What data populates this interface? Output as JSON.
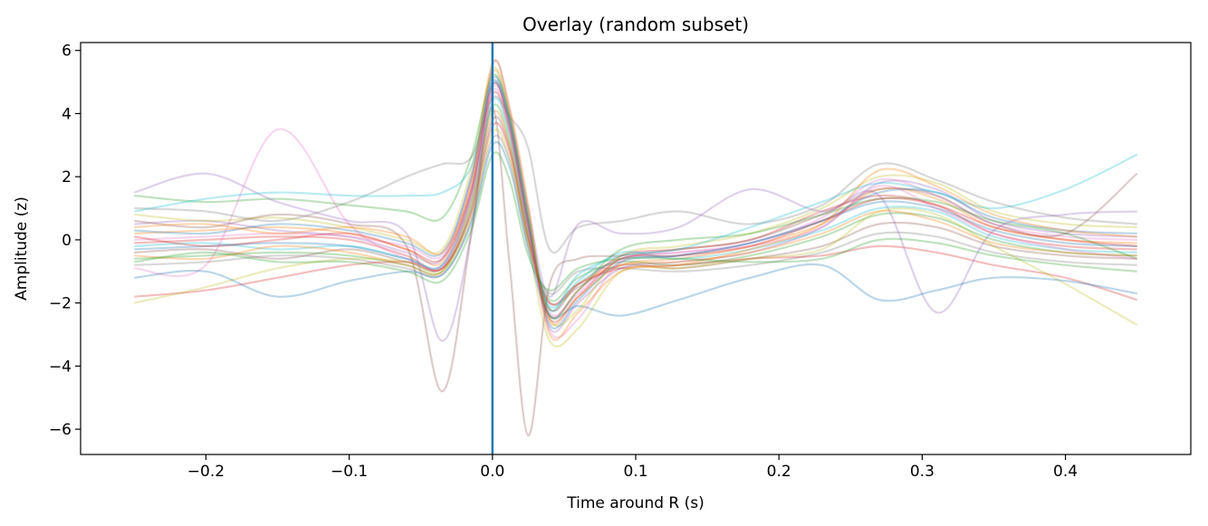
{
  "chart_data": {
    "type": "line",
    "title": "Overlay (random subset)",
    "xlabel": "Time around R (s)",
    "ylabel": "Amplitude (z)",
    "xlim": [
      -0.2875,
      0.4875
    ],
    "ylim": [
      -6.8,
      6.25
    ],
    "xticks": [
      -0.2,
      -0.1,
      0.0,
      0.1,
      0.2,
      0.3,
      0.4
    ],
    "xtick_labels": [
      "−0.2",
      "−0.1",
      "0.0",
      "0.1",
      "0.2",
      "0.3",
      "0.4"
    ],
    "yticks": [
      -6,
      -4,
      -2,
      0,
      2,
      4,
      6
    ],
    "ytick_labels": [
      "−6",
      "−4",
      "−2",
      "0",
      "2",
      "4",
      "6"
    ],
    "grid": false,
    "legend": "none",
    "x_range": [
      -0.25,
      0.45
    ],
    "vline": {
      "x": 0.0,
      "color": "#1f77b4"
    },
    "series_alpha": 0.3,
    "palette": [
      "#1f77b4",
      "#ff7f0e",
      "#2ca02c",
      "#d62728",
      "#9467bd",
      "#8c564b",
      "#e377c2",
      "#7f7f7f",
      "#bcbd22",
      "#17becf"
    ],
    "series": [
      {
        "x": [
          -0.25,
          -0.2,
          -0.15,
          -0.1,
          -0.06,
          -0.035,
          -0.015,
          0.0,
          0.012,
          0.025,
          0.04,
          0.06,
          0.09,
          0.13,
          0.18,
          0.23,
          0.27,
          0.31,
          0.35,
          0.4,
          0.45
        ],
        "y": [
          -0.3,
          -0.2,
          -0.1,
          -0.2,
          -0.6,
          -0.8,
          1.5,
          4.9,
          3.6,
          0.4,
          -2.2,
          -1.4,
          -0.6,
          -0.5,
          -0.1,
          0.6,
          1.2,
          1.0,
          0.3,
          -0.1,
          -0.2
        ]
      },
      {
        "x": [
          -0.25,
          -0.2,
          -0.15,
          -0.1,
          -0.06,
          -0.035,
          -0.015,
          0.0,
          0.012,
          0.025,
          0.04,
          0.06,
          0.09,
          0.13,
          0.18,
          0.23,
          0.27,
          0.31,
          0.35,
          0.4,
          0.45
        ],
        "y": [
          0.2,
          0.3,
          0.4,
          0.2,
          -0.3,
          -0.7,
          1.8,
          5.3,
          3.9,
          0.6,
          -2.6,
          -1.8,
          -0.8,
          -0.6,
          -0.2,
          0.5,
          1.6,
          1.3,
          0.4,
          0.0,
          -0.1
        ]
      },
      {
        "x": [
          -0.25,
          -0.2,
          -0.15,
          -0.1,
          -0.06,
          -0.035,
          -0.015,
          0.0,
          0.012,
          0.025,
          0.04,
          0.06,
          0.09,
          0.13,
          0.18,
          0.23,
          0.27,
          0.31,
          0.35,
          0.4,
          0.45
        ],
        "y": [
          -0.6,
          -0.5,
          -0.4,
          -0.5,
          -0.8,
          -1.0,
          1.0,
          4.2,
          3.1,
          0.1,
          -1.9,
          -1.2,
          -0.7,
          -0.8,
          -0.5,
          0.1,
          0.8,
          0.7,
          0.0,
          -0.4,
          -0.5
        ]
      },
      {
        "x": [
          -0.25,
          -0.2,
          -0.15,
          -0.1,
          -0.06,
          -0.035,
          -0.015,
          0.0,
          0.012,
          0.025,
          0.04,
          0.06,
          0.09,
          0.13,
          0.18,
          0.23,
          0.27,
          0.31,
          0.35,
          0.4,
          0.45
        ],
        "y": [
          -0.1,
          0.0,
          0.1,
          0.0,
          -0.5,
          -0.9,
          1.3,
          4.6,
          3.4,
          0.3,
          -2.4,
          -1.6,
          -0.5,
          -0.3,
          0.0,
          0.9,
          1.4,
          1.1,
          0.2,
          -0.2,
          -0.3
        ]
      },
      {
        "x": [
          -0.25,
          -0.2,
          -0.15,
          -0.1,
          -0.06,
          -0.035,
          -0.015,
          0.0,
          0.012,
          0.025,
          0.04,
          0.06,
          0.09,
          0.13,
          0.18,
          0.23,
          0.27,
          0.31,
          0.35,
          0.4,
          0.45
        ],
        "y": [
          0.5,
          0.6,
          0.3,
          0.1,
          -0.4,
          -0.6,
          2.0,
          5.0,
          3.8,
          0.7,
          -2.8,
          -2.0,
          -0.9,
          -0.7,
          -0.4,
          0.4,
          1.8,
          1.6,
          0.6,
          0.2,
          0.1
        ]
      },
      {
        "x": [
          -0.25,
          -0.2,
          -0.15,
          -0.1,
          -0.06,
          -0.035,
          -0.015,
          0.0,
          0.012,
          0.025,
          0.04,
          0.06,
          0.09,
          0.13,
          0.18,
          0.23,
          0.27,
          0.31,
          0.35,
          0.4,
          0.45
        ],
        "y": [
          -0.4,
          -0.3,
          -0.6,
          -0.3,
          -0.7,
          -0.9,
          0.9,
          3.8,
          2.9,
          0.0,
          -2.0,
          -1.5,
          -0.8,
          -0.9,
          -0.6,
          -0.2,
          0.5,
          0.4,
          -0.2,
          -0.5,
          -0.6
        ]
      },
      {
        "x": [
          -0.25,
          -0.2,
          -0.15,
          -0.1,
          -0.06,
          -0.035,
          -0.015,
          0.0,
          0.012,
          0.025,
          0.04,
          0.06,
          0.09,
          0.13,
          0.18,
          0.23,
          0.27,
          0.31,
          0.35,
          0.4,
          0.45
        ],
        "y": [
          0.0,
          0.1,
          0.2,
          0.1,
          -0.2,
          -0.5,
          1.6,
          4.8,
          3.7,
          0.5,
          -2.3,
          -1.7,
          -0.6,
          -0.4,
          -0.1,
          0.7,
          1.9,
          1.4,
          0.5,
          0.1,
          0.0
        ]
      },
      {
        "x": [
          -0.25,
          -0.2,
          -0.15,
          -0.1,
          -0.06,
          -0.035,
          -0.015,
          0.0,
          0.012,
          0.025,
          0.04,
          0.06,
          0.09,
          0.13,
          0.18,
          0.23,
          0.27,
          0.31,
          0.35,
          0.4,
          0.45
        ],
        "y": [
          -0.8,
          -0.7,
          -0.5,
          -0.6,
          -0.9,
          -1.1,
          0.6,
          3.2,
          2.5,
          -0.2,
          -1.7,
          -1.0,
          -0.9,
          -1.0,
          -0.8,
          -0.4,
          0.2,
          0.1,
          -0.4,
          -0.7,
          -0.8
        ]
      },
      {
        "x": [
          -0.25,
          -0.2,
          -0.15,
          -0.1,
          -0.06,
          -0.035,
          -0.015,
          0.0,
          0.012,
          0.025,
          0.04,
          0.06,
          0.09,
          0.13,
          0.18,
          0.23,
          0.27,
          0.31,
          0.35,
          0.4,
          0.45
        ],
        "y": [
          0.8,
          0.6,
          0.7,
          0.4,
          0.0,
          -0.3,
          2.2,
          5.4,
          4.0,
          0.9,
          -2.5,
          -2.2,
          -0.5,
          -0.2,
          0.2,
          1.0,
          2.0,
          1.8,
          0.9,
          0.5,
          0.4
        ]
      },
      {
        "x": [
          -0.25,
          -0.2,
          -0.15,
          -0.1,
          -0.06,
          -0.035,
          -0.015,
          0.0,
          0.012,
          0.025,
          0.04,
          0.06,
          0.09,
          0.13,
          0.18,
          0.23,
          0.27,
          0.31,
          0.35,
          0.4,
          0.45
        ],
        "y": [
          -0.2,
          -0.1,
          -0.3,
          -0.2,
          -0.6,
          -0.8,
          1.2,
          4.4,
          3.3,
          0.2,
          -2.1,
          -1.3,
          -0.4,
          -0.6,
          -0.3,
          0.3,
          1.0,
          0.9,
          0.1,
          -0.3,
          -0.4
        ]
      },
      {
        "x": [
          -0.25,
          -0.2,
          -0.15,
          -0.1,
          -0.06,
          -0.035,
          -0.015,
          0.0,
          0.012,
          0.025,
          0.04,
          0.06,
          0.09,
          0.13,
          0.18,
          0.23,
          0.27,
          0.31,
          0.35,
          0.4,
          0.45
        ],
        "y": [
          0.3,
          0.2,
          0.5,
          0.3,
          -0.1,
          -0.4,
          1.9,
          5.1,
          3.8,
          0.6,
          -2.7,
          -1.9,
          -0.7,
          -0.5,
          -0.1,
          0.6,
          1.5,
          1.5,
          0.7,
          0.3,
          0.2
        ]
      },
      {
        "x": [
          -0.25,
          -0.2,
          -0.15,
          -0.1,
          -0.06,
          -0.035,
          -0.015,
          0.0,
          0.012,
          0.025,
          0.04,
          0.06,
          0.09,
          0.13,
          0.18,
          0.23,
          0.27,
          0.31,
          0.35,
          0.4,
          0.45
        ],
        "y": [
          -0.5,
          -0.6,
          -0.2,
          -0.4,
          -0.8,
          -1.0,
          1.1,
          4.0,
          3.0,
          0.1,
          -2.2,
          -1.4,
          -0.8,
          -0.7,
          -0.4,
          0.2,
          0.9,
          0.6,
          -0.1,
          -0.4,
          -0.5
        ]
      },
      {
        "x": [
          -0.25,
          -0.2,
          -0.15,
          -0.1,
          -0.06,
          -0.035,
          -0.015,
          0.0,
          0.012,
          0.025,
          0.04,
          0.06,
          0.09,
          0.13,
          0.18,
          0.23,
          0.27,
          0.31,
          0.35,
          0.4,
          0.45
        ],
        "y": [
          1.4,
          1.2,
          1.3,
          1.1,
          0.9,
          0.7,
          2.6,
          5.2,
          3.9,
          0.8,
          -2.4,
          -1.6,
          -0.3,
          0.0,
          0.2,
          0.8,
          1.3,
          1.2,
          0.6,
          0.2,
          -0.6
        ]
      },
      {
        "x": [
          -0.25,
          -0.2,
          -0.15,
          -0.1,
          -0.06,
          -0.035,
          -0.015,
          0.0,
          0.012,
          0.025,
          0.04,
          0.06,
          0.09,
          0.13,
          0.18,
          0.23,
          0.27,
          0.31,
          0.35,
          0.4,
          0.45
        ],
        "y": [
          -1.8,
          -1.6,
          -1.2,
          -0.8,
          -0.7,
          -0.9,
          0.8,
          3.6,
          2.8,
          0.0,
          -2.0,
          -1.4,
          -0.9,
          -0.8,
          -0.6,
          -0.5,
          -0.2,
          -0.4,
          -0.8,
          -1.2,
          -1.9
        ]
      },
      {
        "x": [
          -0.25,
          -0.2,
          -0.15,
          -0.1,
          -0.06,
          -0.035,
          -0.015,
          0.0,
          0.012,
          0.025,
          0.04,
          0.06,
          0.09,
          0.13,
          0.18,
          0.23,
          0.27,
          0.31,
          0.35,
          0.4,
          0.45
        ],
        "y": [
          1.5,
          2.1,
          1.2,
          0.6,
          0.2,
          -3.2,
          0.2,
          5.5,
          4.1,
          1.0,
          -1.8,
          0.5,
          0.2,
          0.4,
          1.6,
          0.9,
          1.4,
          -2.3,
          0.3,
          0.8,
          0.9
        ]
      },
      {
        "x": [
          -0.25,
          -0.2,
          -0.15,
          -0.1,
          -0.06,
          -0.035,
          -0.015,
          0.0,
          0.012,
          0.025,
          0.04,
          0.06,
          0.09,
          0.13,
          0.18,
          0.23,
          0.27,
          0.31,
          0.35,
          0.4,
          0.45
        ],
        "y": [
          0.6,
          0.4,
          0.8,
          0.5,
          -0.2,
          -4.8,
          0.1,
          4.2,
          -0.8,
          -6.2,
          -1.4,
          -0.6,
          -0.5,
          -0.3,
          0.0,
          0.8,
          1.6,
          1.4,
          0.5,
          0.2,
          2.1
        ]
      },
      {
        "x": [
          -0.25,
          -0.2,
          -0.15,
          -0.1,
          -0.06,
          -0.035,
          -0.015,
          0.0,
          0.012,
          0.025,
          0.04,
          0.06,
          0.09,
          0.13,
          0.18,
          0.23,
          0.27,
          0.31,
          0.35,
          0.4,
          0.45
        ],
        "y": [
          -0.9,
          -0.8,
          3.5,
          0.5,
          -0.6,
          -0.8,
          1.4,
          4.7,
          3.5,
          0.4,
          -2.9,
          -2.5,
          -0.7,
          -0.4,
          -0.2,
          0.4,
          1.7,
          1.0,
          0.2,
          -0.3,
          -0.6
        ]
      },
      {
        "x": [
          -0.25,
          -0.2,
          -0.15,
          -0.1,
          -0.06,
          -0.035,
          -0.015,
          0.0,
          0.012,
          0.025,
          0.04,
          0.06,
          0.09,
          0.13,
          0.18,
          0.23,
          0.27,
          0.31,
          0.35,
          0.4,
          0.45
        ],
        "y": [
          1.0,
          0.9,
          0.6,
          1.2,
          2.0,
          2.4,
          2.6,
          4.5,
          3.9,
          2.9,
          -0.3,
          0.4,
          0.6,
          0.9,
          0.5,
          1.1,
          2.4,
          1.9,
          1.2,
          0.7,
          0.5
        ]
      },
      {
        "x": [
          -0.25,
          -0.2,
          -0.15,
          -0.1,
          -0.06,
          -0.035,
          -0.015,
          0.0,
          0.012,
          0.025,
          0.04,
          0.06,
          0.09,
          0.13,
          0.18,
          0.23,
          0.27,
          0.31,
          0.35,
          0.4,
          0.45
        ],
        "y": [
          -2.0,
          -1.5,
          -0.9,
          -0.6,
          -0.7,
          -1.0,
          0.7,
          3.4,
          2.6,
          -0.1,
          -3.2,
          -2.8,
          -1.0,
          -0.9,
          -0.6,
          -0.3,
          0.9,
          0.8,
          -0.2,
          -1.4,
          -2.7
        ]
      },
      {
        "x": [
          -0.25,
          -0.2,
          -0.15,
          -0.1,
          -0.06,
          -0.035,
          -0.015,
          0.0,
          0.012,
          0.025,
          0.04,
          0.06,
          0.09,
          0.13,
          0.18,
          0.23,
          0.27,
          0.31,
          0.35,
          0.4,
          0.45
        ],
        "y": [
          0.9,
          1.3,
          1.5,
          1.4,
          1.4,
          1.5,
          2.3,
          5.0,
          3.7,
          0.6,
          -2.2,
          -1.1,
          -0.5,
          -0.3,
          0.4,
          1.2,
          1.8,
          1.5,
          1.0,
          1.6,
          2.7
        ]
      },
      {
        "x": [
          -0.25,
          -0.2,
          -0.15,
          -0.1,
          -0.06,
          -0.035,
          -0.015,
          0.0,
          0.012,
          0.025,
          0.04,
          0.06,
          0.09,
          0.13,
          0.18,
          0.23,
          0.27,
          0.31,
          0.35,
          0.4,
          0.45
        ],
        "y": [
          -1.2,
          -1.0,
          -1.8,
          -1.3,
          -1.0,
          -1.1,
          0.5,
          3.0,
          2.3,
          -0.3,
          -2.4,
          -2.1,
          -2.4,
          -1.9,
          -1.2,
          -0.8,
          -1.9,
          -1.6,
          -1.2,
          -1.3,
          -1.7
        ]
      },
      {
        "x": [
          -0.25,
          -0.2,
          -0.15,
          -0.1,
          -0.06,
          -0.035,
          -0.015,
          0.0,
          0.012,
          0.025,
          0.04,
          0.06,
          0.09,
          0.13,
          0.18,
          0.23,
          0.27,
          0.31,
          0.35,
          0.4,
          0.45
        ],
        "y": [
          0.4,
          0.5,
          0.2,
          0.4,
          0.1,
          -0.4,
          1.7,
          5.6,
          4.2,
          1.1,
          -3.0,
          -2.3,
          -1.0,
          -0.8,
          -0.3,
          0.5,
          2.2,
          1.7,
          0.8,
          0.3,
          0.1
        ]
      },
      {
        "x": [
          -0.25,
          -0.2,
          -0.15,
          -0.1,
          -0.06,
          -0.035,
          -0.015,
          0.0,
          0.012,
          0.025,
          0.04,
          0.06,
          0.09,
          0.13,
          0.18,
          0.23,
          0.27,
          0.31,
          0.35,
          0.4,
          0.45
        ],
        "y": [
          -0.7,
          -0.4,
          -0.7,
          -0.7,
          -1.0,
          -1.3,
          0.3,
          2.7,
          1.9,
          -0.5,
          -1.6,
          -0.9,
          -0.6,
          -0.6,
          -0.7,
          -0.6,
          0.0,
          -0.1,
          -0.5,
          -0.8,
          -1.0
        ]
      },
      {
        "x": [
          -0.25,
          -0.2,
          -0.15,
          -0.1,
          -0.06,
          -0.035,
          -0.015,
          0.0,
          0.012,
          0.025,
          0.04,
          0.06,
          0.09,
          0.13,
          0.18,
          0.23,
          0.27,
          0.31,
          0.35,
          0.4,
          0.45
        ],
        "y": [
          0.1,
          -0.2,
          0.0,
          0.2,
          -0.3,
          -0.6,
          1.5,
          4.9,
          3.6,
          0.5,
          -2.5,
          -1.8,
          -0.6,
          -0.5,
          -0.2,
          0.6,
          1.3,
          1.1,
          0.4,
          0.0,
          -0.2
        ]
      }
    ]
  }
}
